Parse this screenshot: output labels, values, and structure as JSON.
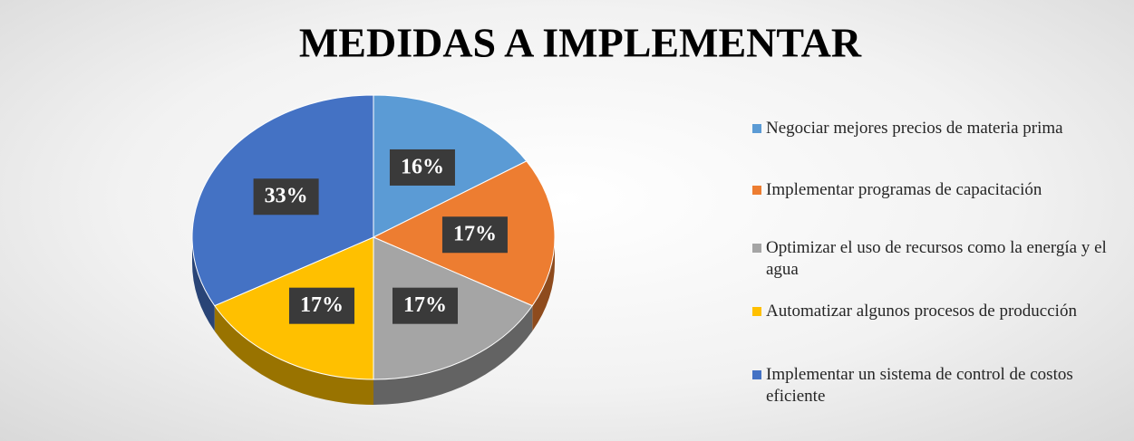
{
  "chart_data": {
    "type": "pie",
    "title": "MEDIDAS A IMPLEMENTAR",
    "categories": [
      "Negociar mejores precios de materia prima",
      "Implementar programas de capacitación",
      "Optimizar el uso de recursos como la energía y el agua",
      "Automatizar algunos procesos de producción",
      "Implementar un sistema de control de costos eficiente"
    ],
    "values": [
      16,
      17,
      17,
      17,
      33
    ],
    "value_labels": [
      "16%",
      "17%",
      "17%",
      "17%",
      "33%"
    ],
    "colors": [
      "#5b9bd5",
      "#ed7d31",
      "#a5a5a5",
      "#ffc000",
      "#4472c4"
    ],
    "legend": "right"
  }
}
